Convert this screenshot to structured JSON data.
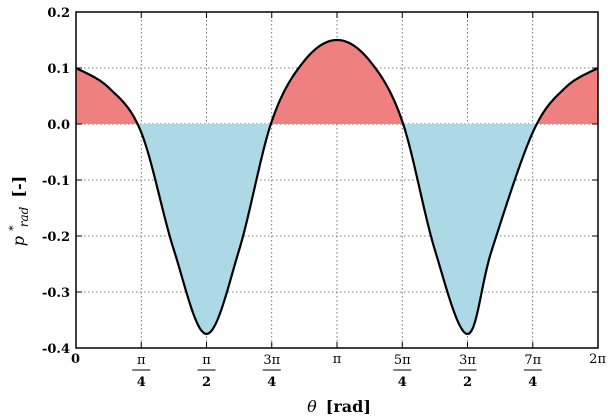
{
  "chart_data": {
    "type": "area",
    "xlabel_symbol": "θ",
    "xlabel_unit": "[rad]",
    "ylabel_base": "p",
    "ylabel_sup": "*",
    "ylabel_sub": "rad",
    "ylabel_unit": "[-]",
    "xlim": [
      0,
      6.283185
    ],
    "ylim": [
      -0.4,
      0.2
    ],
    "yticks": [
      -0.4,
      -0.3,
      -0.2,
      -0.1,
      0.0,
      0.1,
      0.2
    ],
    "ytick_labels": [
      "-0.4",
      "-0.3",
      "-0.2",
      "-0.1",
      "0.0",
      "0.1",
      "0.2"
    ],
    "xticks": [
      {
        "value": 0,
        "label": "0"
      },
      {
        "value": 0.785398,
        "num": "π",
        "den": "4"
      },
      {
        "value": 1.570796,
        "num": "π",
        "den": "2"
      },
      {
        "value": 2.356194,
        "num": "3π",
        "den": "4"
      },
      {
        "value": 3.141593,
        "label": "π"
      },
      {
        "value": 3.926991,
        "num": "5π",
        "den": "4"
      },
      {
        "value": 4.712389,
        "num": "3π",
        "den": "2"
      },
      {
        "value": 5.497787,
        "num": "7π",
        "den": "4"
      },
      {
        "value": 6.283185,
        "label": "2π"
      }
    ],
    "grid": true,
    "series": [
      {
        "line_color": "#000000",
        "positive_fill": "#f08080",
        "negative_fill": "#add8e6",
        "x": [
          0,
          0.3927,
          0.7854,
          1.1781,
          1.5708,
          1.9635,
          2.3562,
          2.7489,
          3.1416,
          3.5343,
          3.927,
          4.3197,
          4.7124,
          5.0051,
          5.4978,
          5.8905,
          6.2832
        ],
        "y": [
          0.1,
          0.065,
          -0.015,
          -0.225,
          -0.375,
          -0.225,
          0.005,
          0.113,
          0.15,
          0.113,
          0.005,
          -0.225,
          -0.375,
          -0.225,
          -0.015,
          0.065,
          0.1
        ]
      }
    ]
  }
}
